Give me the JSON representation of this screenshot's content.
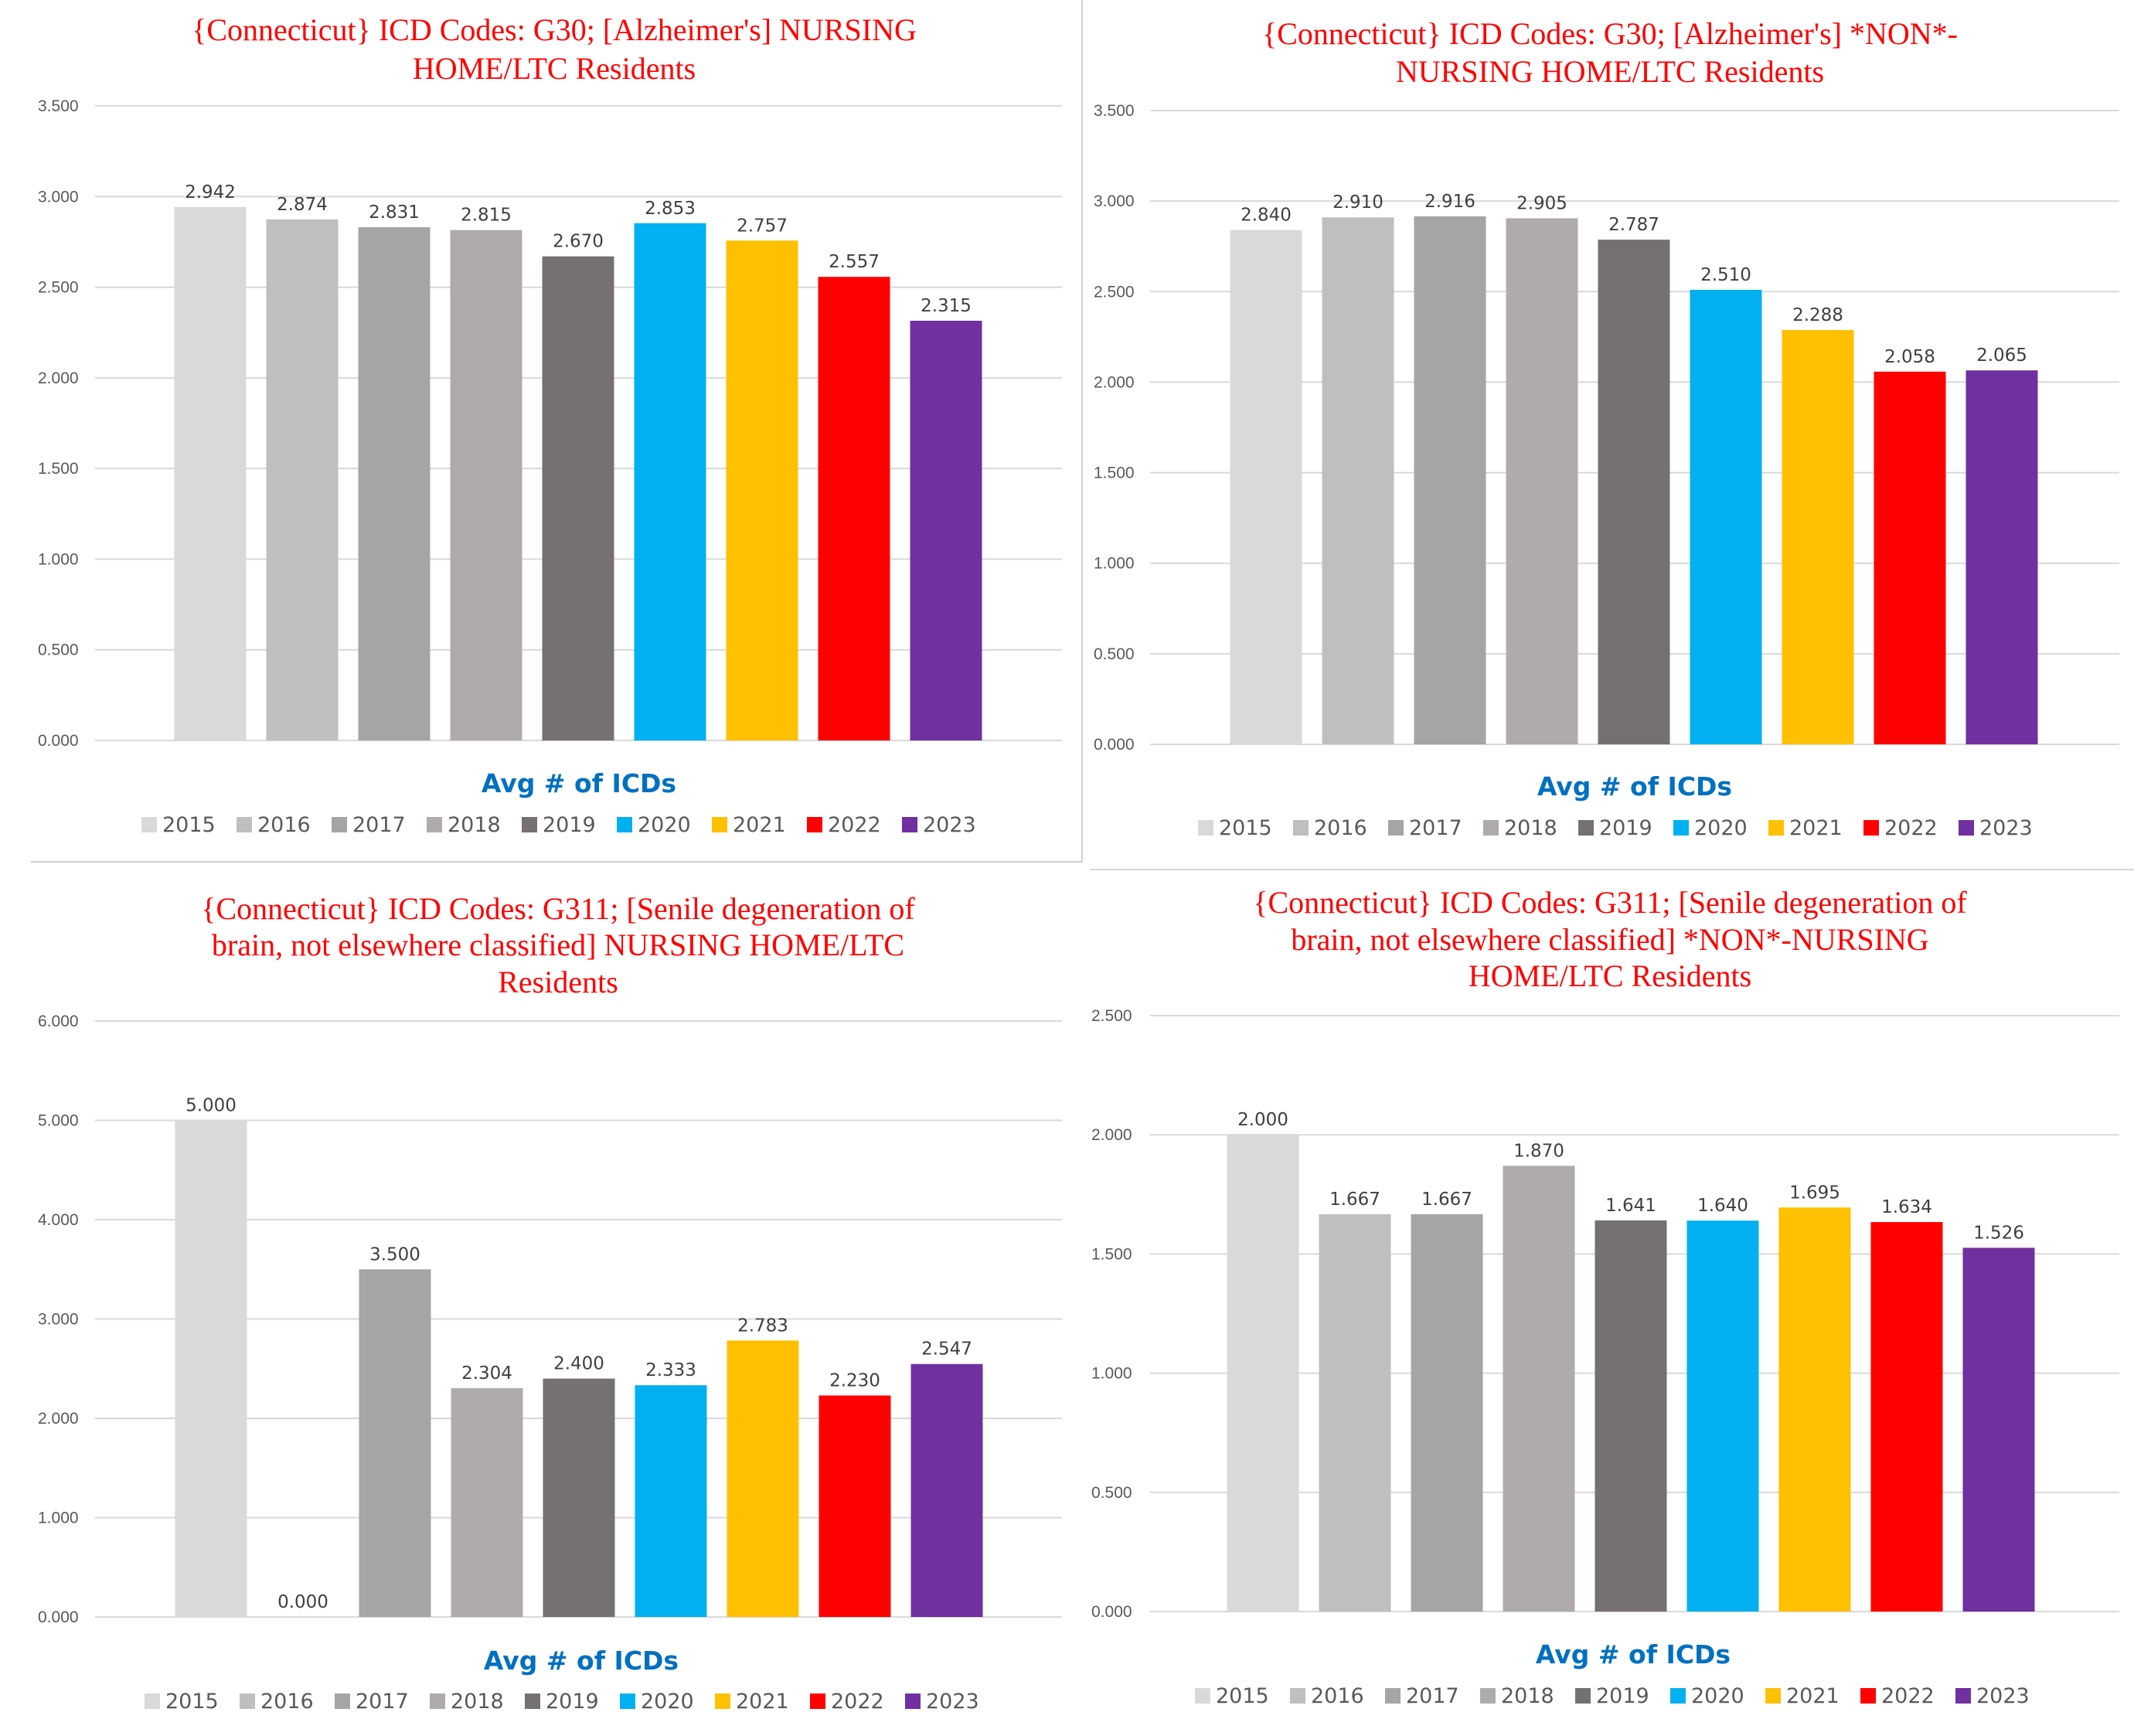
{
  "legend_colors": {
    "2015": "#d9d9d9",
    "2016": "#bfbfbf",
    "2017": "#a5a5a5",
    "2018": "#afabab",
    "2019": "#767171",
    "2020": "#00b0f0",
    "2021": "#ffc000",
    "2022": "#ff0000",
    "2023": "#7030a0"
  },
  "chart_data": [
    {
      "type": "bar",
      "title_lines": [
        "{Connecticut}  ICD Codes: G30;  [Alzheimer's] NURSING",
        "HOME/LTC Residents"
      ],
      "xlabel": "Avg # of ICDs",
      "categories": [
        "2015",
        "2016",
        "2017",
        "2018",
        "2019",
        "2020",
        "2021",
        "2022",
        "2023"
      ],
      "values": [
        2.942,
        2.874,
        2.831,
        2.815,
        2.67,
        2.853,
        2.757,
        2.557,
        2.315
      ],
      "value_labels": [
        "2.942",
        "2.874",
        "2.831",
        "2.815",
        "2.670",
        "2.853",
        "2.757",
        "2.557",
        "2.315"
      ],
      "ylim": [
        0,
        3.5
      ],
      "yticks": [
        "0.000",
        "0.500",
        "1.000",
        "1.500",
        "2.000",
        "2.500",
        "3.000",
        "3.500"
      ],
      "grid": true,
      "legend": "bottom"
    },
    {
      "type": "bar",
      "title_lines": [
        "{Connecticut}  ICD Codes: G30;  [Alzheimer's] *NON*-",
        "NURSING HOME/LTC Residents"
      ],
      "xlabel": "Avg # of ICDs",
      "categories": [
        "2015",
        "2016",
        "2017",
        "2018",
        "2019",
        "2020",
        "2021",
        "2022",
        "2023"
      ],
      "values": [
        2.84,
        2.91,
        2.916,
        2.905,
        2.787,
        2.51,
        2.288,
        2.058,
        2.065
      ],
      "value_labels": [
        "2.840",
        "2.910",
        "2.916",
        "2.905",
        "2.787",
        "2.510",
        "2.288",
        "2.058",
        "2.065"
      ],
      "ylim": [
        0,
        3.5
      ],
      "yticks": [
        "0.000",
        "0.500",
        "1.000",
        "1.500",
        "2.000",
        "2.500",
        "3.000",
        "3.500"
      ],
      "grid": true,
      "legend": "bottom"
    },
    {
      "type": "bar",
      "title_lines": [
        "{Connecticut}  ICD Codes: G311;  [Senile degeneration of",
        "brain, not elsewhere classified] NURSING HOME/LTC",
        "Residents"
      ],
      "xlabel": "Avg # of ICDs",
      "categories": [
        "2015",
        "2016",
        "2017",
        "2018",
        "2019",
        "2020",
        "2021",
        "2022",
        "2023"
      ],
      "values": [
        5.0,
        0.0,
        3.5,
        2.304,
        2.4,
        2.333,
        2.783,
        2.23,
        2.547
      ],
      "value_labels": [
        "5.000",
        "0.000",
        "3.500",
        "2.304",
        "2.400",
        "2.333",
        "2.783",
        "2.230",
        "2.547"
      ],
      "ylim": [
        0,
        6
      ],
      "yticks": [
        "0.000",
        "1.000",
        "2.000",
        "3.000",
        "4.000",
        "5.000",
        "6.000"
      ],
      "grid": true,
      "legend": "bottom"
    },
    {
      "type": "bar",
      "title_lines": [
        "{Connecticut}  ICD Codes: G311;  [Senile degeneration of",
        "brain, not elsewhere classified] *NON*-NURSING",
        "HOME/LTC Residents"
      ],
      "xlabel": "Avg # of ICDs",
      "categories": [
        "2015",
        "2016",
        "2017",
        "2018",
        "2019",
        "2020",
        "2021",
        "2022",
        "2023"
      ],
      "values": [
        2.0,
        1.667,
        1.667,
        1.87,
        1.641,
        1.64,
        1.695,
        1.634,
        1.526
      ],
      "value_labels": [
        "2.000",
        "1.667",
        "1.667",
        "1.870",
        "1.641",
        "1.640",
        "1.695",
        "1.634",
        "1.526"
      ],
      "ylim": [
        0,
        2.5
      ],
      "yticks": [
        "0.000",
        "0.500",
        "1.000",
        "1.500",
        "2.000",
        "2.500"
      ],
      "grid": true,
      "legend": "bottom"
    }
  ]
}
